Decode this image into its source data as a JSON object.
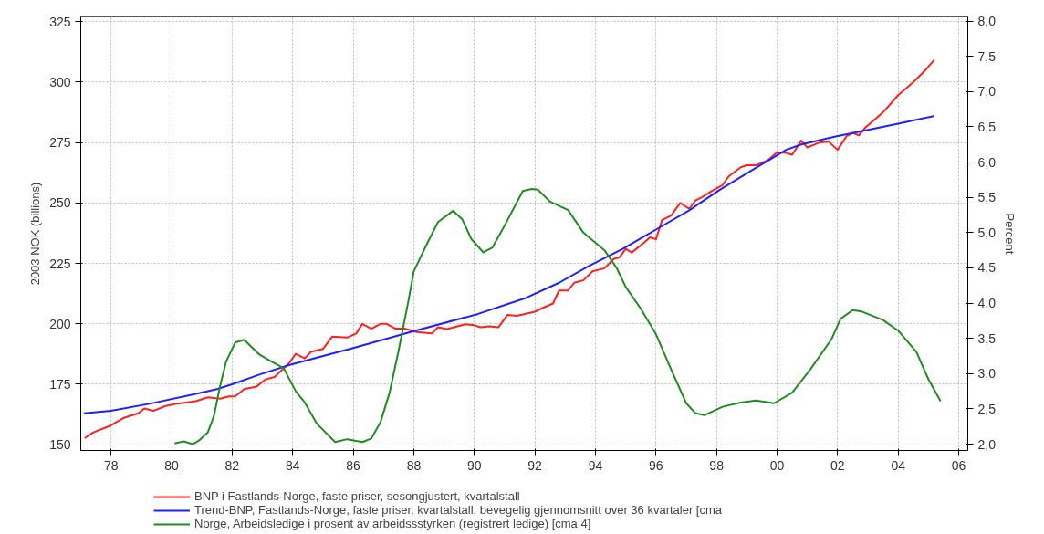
{
  "chart_data": {
    "type": "line",
    "xlabel": null,
    "ylabel": "2003 NOK (billions)",
    "y2label": "Percent",
    "xlim": [
      1977,
      2006.3
    ],
    "xticks": [
      {
        "value": 1978,
        "label": "78"
      },
      {
        "value": 1980,
        "label": "80"
      },
      {
        "value": 1982,
        "label": "82"
      },
      {
        "value": 1984,
        "label": "84"
      },
      {
        "value": 1986,
        "label": "86"
      },
      {
        "value": 1988,
        "label": "88"
      },
      {
        "value": 1990,
        "label": "90"
      },
      {
        "value": 1992,
        "label": "92"
      },
      {
        "value": 1994,
        "label": "94"
      },
      {
        "value": 1996,
        "label": "96"
      },
      {
        "value": 1998,
        "label": "98"
      },
      {
        "value": 2000,
        "label": "00"
      },
      {
        "value": 2002,
        "label": "02"
      },
      {
        "value": 2004,
        "label": "04"
      },
      {
        "value": 2006,
        "label": "06"
      }
    ],
    "ylim": [
      147.6,
      327
    ],
    "yticks": [
      150,
      175,
      200,
      225,
      250,
      275,
      300,
      325
    ],
    "y2lim": [
      1.91,
      8.06
    ],
    "y2ticks": [
      {
        "value": 2,
        "label": "2,0"
      },
      {
        "value": 2.5,
        "label": "2,5"
      },
      {
        "value": 3,
        "label": "3,0"
      },
      {
        "value": 3.5,
        "label": "3,5"
      },
      {
        "value": 4,
        "label": "4,0"
      },
      {
        "value": 4.5,
        "label": "4,5"
      },
      {
        "value": 5,
        "label": "5,0"
      },
      {
        "value": 5.5,
        "label": "5,5"
      },
      {
        "value": 6,
        "label": "6,0"
      },
      {
        "value": 6.5,
        "label": "6,5"
      },
      {
        "value": 7,
        "label": "7,0"
      },
      {
        "value": 7.5,
        "label": "7,5"
      },
      {
        "value": 8,
        "label": "8,0"
      }
    ],
    "grid": true,
    "legend": "bottom",
    "line_style": "solid",
    "marker": "none",
    "series": [
      {
        "name": "BNP i Fastlands-Norge, faste priser, sesongjustert, kvartalstall",
        "color": "#ff2020",
        "x": [
          1977.13,
          1977.4,
          1978.0,
          1978.4,
          1978.9,
          1979.1,
          1979.4,
          1979.8,
          1980.2,
          1980.8,
          1981.2,
          1981.6,
          1981.9,
          1982.1,
          1982.4,
          1982.8,
          1983.1,
          1983.4,
          1983.9,
          1984.1,
          1984.4,
          1984.6,
          1985.0,
          1985.3,
          1985.8,
          1986.1,
          1986.3,
          1986.6,
          1986.9,
          1987.1,
          1987.4,
          1987.7,
          1988.1,
          1988.6,
          1988.8,
          1989.1,
          1989.7,
          1990.0,
          1990.2,
          1990.5,
          1990.8,
          1991.1,
          1991.4,
          1992.0,
          1992.3,
          1992.6,
          1992.8,
          1993.1,
          1993.3,
          1993.6,
          1993.9,
          1994.3,
          1994.6,
          1994.8,
          1995.0,
          1995.2,
          1995.6,
          1995.8,
          1996.0,
          1996.2,
          1996.5,
          1996.8,
          1997.1,
          1997.3,
          1997.5,
          1997.9,
          1998.2,
          1998.4,
          1998.8,
          1999.0,
          1999.3,
          1999.6,
          1999.7,
          2000.0,
          2000.3,
          2000.5,
          2000.8,
          2001.0,
          2001.4,
          2001.7,
          2002.0,
          2002.3,
          2002.5,
          2002.7,
          2002.9,
          2003.5,
          2004.0,
          2004.5,
          2004.9,
          2005.2
        ],
        "values": [
          152.7,
          155,
          158,
          161,
          163,
          165,
          164,
          166,
          167,
          168,
          169.6,
          169,
          170,
          170,
          173,
          174,
          177,
          178,
          184,
          187.6,
          185.7,
          188.4,
          189.6,
          194.7,
          194.3,
          196,
          200,
          198,
          200,
          200,
          198,
          198,
          196.6,
          196,
          198.6,
          197.8,
          199.8,
          199.4,
          198.6,
          199,
          198.6,
          203.7,
          203.3,
          205,
          206.8,
          208.4,
          213.8,
          213.8,
          217,
          218,
          221.7,
          223,
          226.8,
          227.6,
          231,
          229.5,
          233.5,
          235.8,
          235,
          242.9,
          244.8,
          250,
          247.6,
          251,
          252.3,
          255.4,
          257.4,
          261,
          264.8,
          265.6,
          265.6,
          267.2,
          267.7,
          271,
          270.7,
          270,
          275.8,
          273,
          275,
          275.4,
          272,
          277.7,
          279,
          278,
          281,
          287.5,
          294.6,
          300,
          305,
          309.3
        ]
      },
      {
        "name": "Trend-BNP, Fastlands-Norge, faste priser, kvartalstall, bevegelig gjennomsnitt over 36 kvartaler [cma",
        "color": "#2020ff",
        "x": [
          1977.1,
          1978.0,
          1979.3,
          1980.8,
          1981.5,
          1982.0,
          1982.9,
          1983.9,
          1986.0,
          1988.0,
          1990.1,
          1991.7,
          1992.8,
          1993.8,
          1994.9,
          1996.0,
          1997.1,
          1998.1,
          1999.2,
          2000.3,
          2000.8,
          2001.9,
          2002.9,
          2004.0,
          2005.2
        ],
        "values": [
          163,
          164,
          167,
          171,
          173,
          175,
          179,
          183,
          190,
          197,
          204,
          210.7,
          217,
          224,
          231,
          239,
          247,
          255.4,
          263.8,
          272,
          274.2,
          277.4,
          280,
          282.8,
          286
        ]
      },
      {
        "name": "Norge, Arbeidsledige i prosent av arbeidssstyrken (registrert ledige) [cma 4]",
        "color": "#228b22",
        "axis": "y2",
        "x": [
          1980.1,
          1980.4,
          1980.7,
          1980.9,
          1981.2,
          1981.4,
          1981.6,
          1981.8,
          1982.1,
          1982.4,
          1982.9,
          1983.3,
          1983.7,
          1984.1,
          1984.4,
          1984.8,
          1985.4,
          1985.8,
          1986.3,
          1986.6,
          1986.9,
          1987.2,
          1987.5,
          1987.8,
          1988.0,
          1988.4,
          1988.8,
          1989.3,
          1989.6,
          1989.9,
          1990.3,
          1990.6,
          1991.0,
          1991.6,
          1991.9,
          1992.1,
          1992.5,
          1993.1,
          1993.6,
          1994.3,
          1994.7,
          1995.0,
          1995.5,
          1996.0,
          1996.5,
          1997.0,
          1997.3,
          1997.6,
          1998.2,
          1998.8,
          1999.3,
          1999.9,
          2000.5,
          2001.1,
          2001.8,
          2002.1,
          2002.5,
          2002.8,
          2003.5,
          2004.0,
          2004.6,
          2005.0,
          2005.4
        ],
        "values": [
          2.01,
          2.04,
          2.0,
          2.05,
          2.17,
          2.4,
          2.82,
          3.17,
          3.44,
          3.48,
          3.27,
          3.17,
          3.08,
          2.75,
          2.59,
          2.29,
          2.03,
          2.07,
          2.03,
          2.08,
          2.31,
          2.73,
          3.33,
          3.98,
          4.45,
          4.81,
          5.15,
          5.31,
          5.19,
          4.91,
          4.72,
          4.79,
          5.1,
          5.59,
          5.62,
          5.61,
          5.44,
          5.32,
          5.0,
          4.75,
          4.5,
          4.23,
          3.92,
          3.56,
          3.06,
          2.58,
          2.44,
          2.41,
          2.53,
          2.59,
          2.62,
          2.58,
          2.73,
          3.06,
          3.49,
          3.78,
          3.9,
          3.88,
          3.76,
          3.61,
          3.31,
          2.92,
          2.61
        ]
      }
    ]
  }
}
